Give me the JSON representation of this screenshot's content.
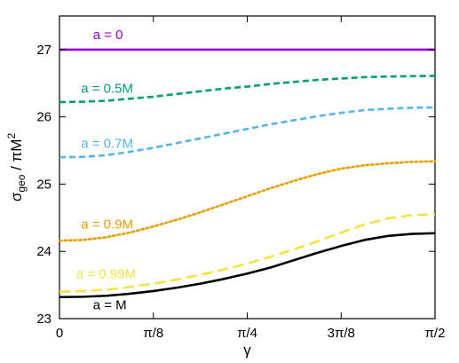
{
  "chart_data": {
    "type": "line",
    "title": "",
    "xlabel": "γ",
    "ylabel_main": "σ",
    "ylabel_sub": "geo",
    "ylabel_rest": " / πM",
    "ylabel_sup": "2",
    "xlim": [
      0,
      1.5708
    ],
    "ylim": [
      23,
      27.5
    ],
    "grid": false,
    "legend": "none",
    "x_ticks": [
      {
        "value": 0,
        "label": "0"
      },
      {
        "value": 0.3927,
        "label": "π/8"
      },
      {
        "value": 0.7854,
        "label": "π/4"
      },
      {
        "value": 1.1781,
        "label": "3π/8"
      },
      {
        "value": 1.5708,
        "label": "π/2"
      }
    ],
    "y_ticks": [
      {
        "value": 23,
        "label": "23"
      },
      {
        "value": 24,
        "label": "24"
      },
      {
        "value": 25,
        "label": "25"
      },
      {
        "value": 26,
        "label": "26"
      },
      {
        "value": 27,
        "label": "27"
      }
    ],
    "x": [
      0,
      0.0982,
      0.1963,
      0.2945,
      0.3927,
      0.4909,
      0.589,
      0.6872,
      0.7854,
      0.8836,
      0.9817,
      1.0799,
      1.1781,
      1.2763,
      1.3744,
      1.4726,
      1.5708
    ],
    "series": [
      {
        "name": "a = 0",
        "color": "#9400d3",
        "dash": "solid",
        "label_x": 0.14,
        "label_y": 27.16,
        "values": [
          27.0,
          27.0,
          27.0,
          27.0,
          27.0,
          27.0,
          27.0,
          27.0,
          27.0,
          27.0,
          27.0,
          27.0,
          27.0,
          27.0,
          27.0,
          27.0,
          27.0
        ]
      },
      {
        "name": "a = 0.5M",
        "color": "#009e73",
        "dash": "dash-medium",
        "label_x": 0.09,
        "label_y": 26.36,
        "values": [
          26.22,
          26.225,
          26.24,
          26.27,
          26.3,
          26.34,
          26.38,
          26.42,
          26.45,
          26.49,
          26.52,
          26.55,
          26.57,
          26.59,
          26.6,
          26.605,
          26.61
        ]
      },
      {
        "name": "a = 0.7M",
        "color": "#56b4e9",
        "dash": "dash-medium",
        "label_x": 0.09,
        "label_y": 25.54,
        "values": [
          25.4,
          25.405,
          25.43,
          25.48,
          25.54,
          25.61,
          25.68,
          25.75,
          25.82,
          25.89,
          25.95,
          26.01,
          26.06,
          26.1,
          26.12,
          26.135,
          26.14
        ]
      },
      {
        "name": "a = 0.9M",
        "color": "#e69f00",
        "dash": "dotted",
        "label_x": 0.09,
        "label_y": 24.34,
        "values": [
          24.16,
          24.17,
          24.21,
          24.28,
          24.37,
          24.47,
          24.58,
          24.7,
          24.82,
          24.94,
          25.05,
          25.15,
          25.23,
          25.28,
          25.31,
          25.33,
          25.34
        ]
      },
      {
        "name": "a = 0.99M",
        "color": "#f0e442",
        "dash": "dash-long",
        "label_x": 0.07,
        "label_y": 23.6,
        "values": [
          23.4,
          23.41,
          23.43,
          23.47,
          23.52,
          23.58,
          23.65,
          23.73,
          23.82,
          23.92,
          24.03,
          24.15,
          24.28,
          24.4,
          24.49,
          24.54,
          24.55
        ]
      },
      {
        "name": "a = M",
        "color": "#000000",
        "dash": "solid",
        "label_x": 0.14,
        "label_y": 23.14,
        "values": [
          23.32,
          23.325,
          23.34,
          23.37,
          23.41,
          23.46,
          23.52,
          23.59,
          23.67,
          23.76,
          23.87,
          23.98,
          24.08,
          24.17,
          24.23,
          24.26,
          24.27
        ]
      }
    ]
  }
}
